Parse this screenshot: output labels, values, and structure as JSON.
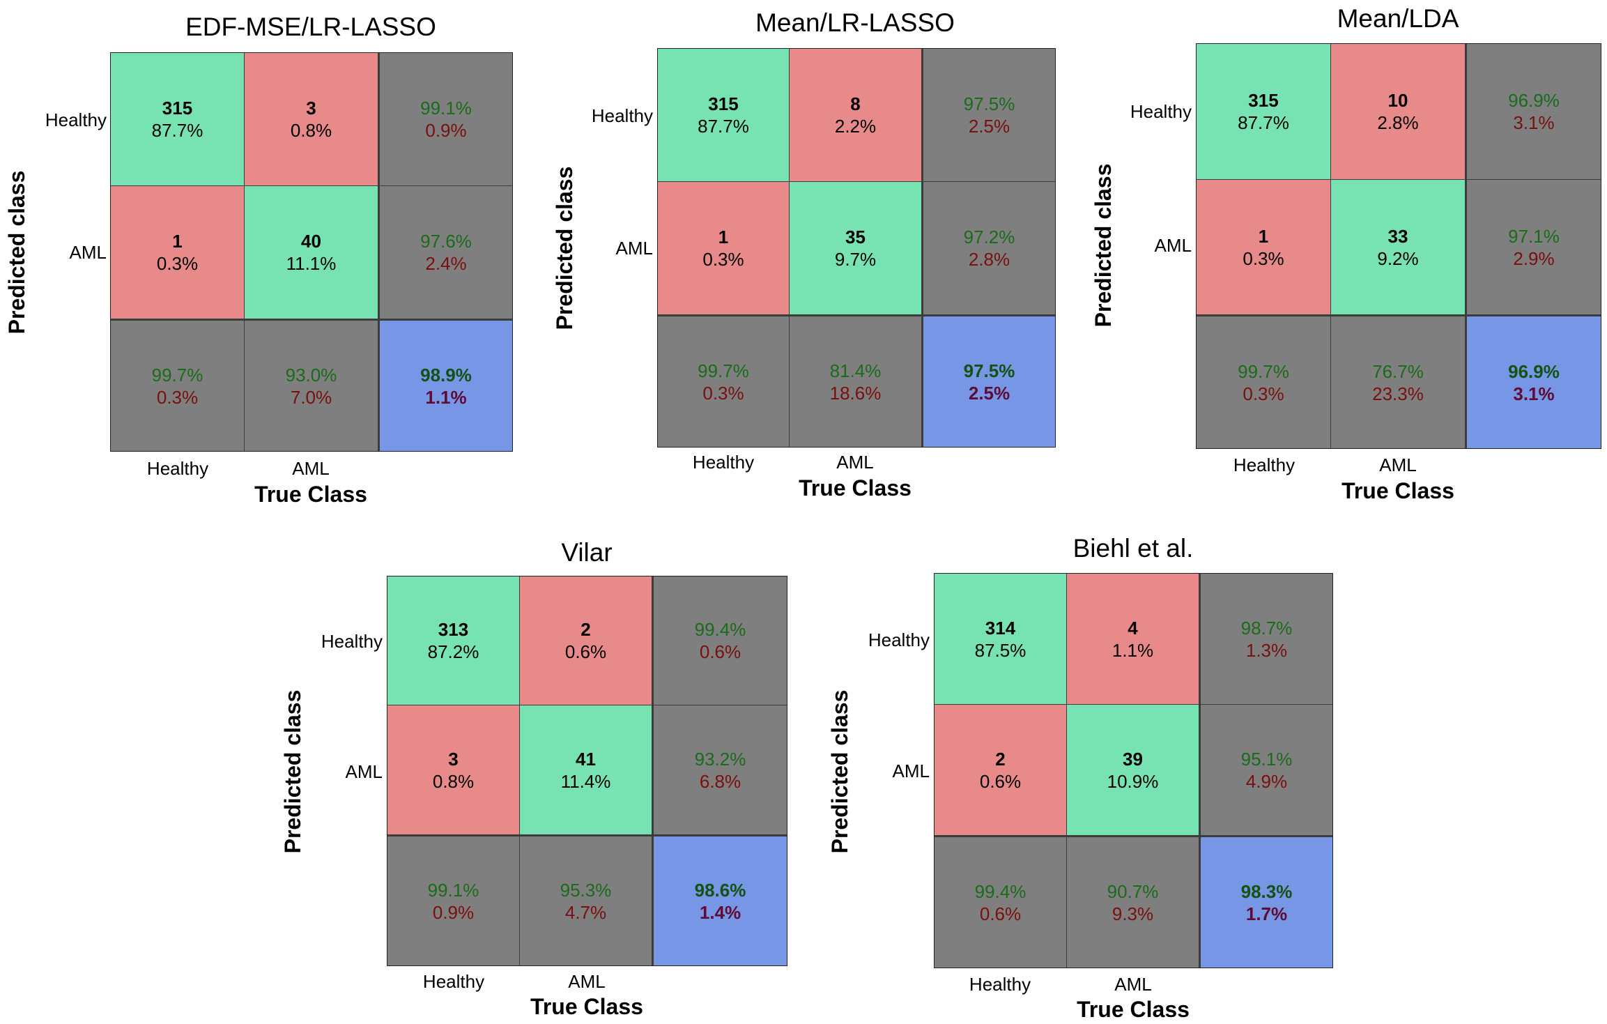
{
  "colors": {
    "correct": "#77e2b2",
    "wrong": "#e78a89",
    "summary": "#7f7f7f",
    "overall": "#7797e6",
    "good_text": "#1a6b1a",
    "bad_text": "#7a0f0f"
  },
  "chart_data": [
    {
      "type": "table",
      "title": "EDF-MSE/LR-LASSO",
      "xlabel": "True Class",
      "ylabel": "Predicted class",
      "classes": [
        "Healthy",
        "AML"
      ],
      "cells": [
        [
          "315",
          "87.7%"
        ],
        [
          "3",
          "0.8%"
        ],
        [
          "1",
          "0.3%"
        ],
        [
          "40",
          "11.1%"
        ]
      ],
      "row_summary": [
        [
          "99.1%",
          "0.9%"
        ],
        [
          "97.6%",
          "2.4%"
        ]
      ],
      "col_summary": [
        [
          "99.7%",
          "0.3%"
        ],
        [
          "93.0%",
          "7.0%"
        ]
      ],
      "overall": [
        "98.9%",
        "1.1%"
      ]
    },
    {
      "type": "table",
      "title": "Mean/LR-LASSO",
      "xlabel": "True Class",
      "ylabel": "Predicted class",
      "classes": [
        "Healthy",
        "AML"
      ],
      "cells": [
        [
          "315",
          "87.7%"
        ],
        [
          "8",
          "2.2%"
        ],
        [
          "1",
          "0.3%"
        ],
        [
          "35",
          "9.7%"
        ]
      ],
      "row_summary": [
        [
          "97.5%",
          "2.5%"
        ],
        [
          "97.2%",
          "2.8%"
        ]
      ],
      "col_summary": [
        [
          "99.7%",
          "0.3%"
        ],
        [
          "81.4%",
          "18.6%"
        ]
      ],
      "overall": [
        "97.5%",
        "2.5%"
      ]
    },
    {
      "type": "table",
      "title": "Mean/LDA",
      "xlabel": "True Class",
      "ylabel": "Predicted class",
      "classes": [
        "Healthy",
        "AML"
      ],
      "cells": [
        [
          "315",
          "87.7%"
        ],
        [
          "10",
          "2.8%"
        ],
        [
          "1",
          "0.3%"
        ],
        [
          "33",
          "9.2%"
        ]
      ],
      "row_summary": [
        [
          "96.9%",
          "3.1%"
        ],
        [
          "97.1%",
          "2.9%"
        ]
      ],
      "col_summary": [
        [
          "99.7%",
          "0.3%"
        ],
        [
          "76.7%",
          "23.3%"
        ]
      ],
      "overall": [
        "96.9%",
        "3.1%"
      ]
    },
    {
      "type": "table",
      "title": "Vilar",
      "xlabel": "True Class",
      "ylabel": "Predicted class",
      "classes": [
        "Healthy",
        "AML"
      ],
      "cells": [
        [
          "313",
          "87.2%"
        ],
        [
          "2",
          "0.6%"
        ],
        [
          "3",
          "0.8%"
        ],
        [
          "41",
          "11.4%"
        ]
      ],
      "row_summary": [
        [
          "99.4%",
          "0.6%"
        ],
        [
          "93.2%",
          "6.8%"
        ]
      ],
      "col_summary": [
        [
          "99.1%",
          "0.9%"
        ],
        [
          "95.3%",
          "4.7%"
        ]
      ],
      "overall": [
        "98.6%",
        "1.4%"
      ]
    },
    {
      "type": "table",
      "title": "Biehl et al.",
      "xlabel": "True Class",
      "ylabel": "Predicted class",
      "classes": [
        "Healthy",
        "AML"
      ],
      "cells": [
        [
          "314",
          "87.5%"
        ],
        [
          "4",
          "1.1%"
        ],
        [
          "2",
          "0.6%"
        ],
        [
          "39",
          "10.9%"
        ]
      ],
      "row_summary": [
        [
          "98.7%",
          "1.3%"
        ],
        [
          "95.1%",
          "4.9%"
        ]
      ],
      "col_summary": [
        [
          "99.4%",
          "0.6%"
        ],
        [
          "90.7%",
          "9.3%"
        ]
      ],
      "overall": [
        "98.3%",
        "1.7%"
      ]
    }
  ]
}
